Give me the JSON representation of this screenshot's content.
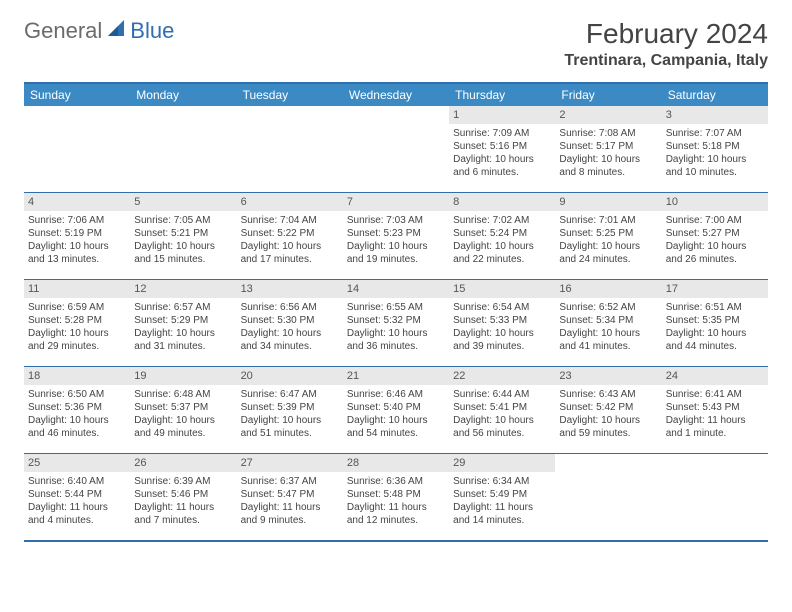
{
  "logo": {
    "general": "General",
    "blue": "Blue"
  },
  "header": {
    "month_title": "February 2024",
    "location": "Trentinara, Campania, Italy"
  },
  "colors": {
    "header_bg": "#3b8ac4",
    "border": "#2f6fb0",
    "daynum_bg": "#e8e8e8",
    "text": "#444444"
  },
  "day_names": [
    "Sunday",
    "Monday",
    "Tuesday",
    "Wednesday",
    "Thursday",
    "Friday",
    "Saturday"
  ],
  "weeks": [
    [
      null,
      null,
      null,
      null,
      {
        "n": "1",
        "sr": "Sunrise: 7:09 AM",
        "ss": "Sunset: 5:16 PM",
        "d1": "Daylight: 10 hours",
        "d2": "and 6 minutes."
      },
      {
        "n": "2",
        "sr": "Sunrise: 7:08 AM",
        "ss": "Sunset: 5:17 PM",
        "d1": "Daylight: 10 hours",
        "d2": "and 8 minutes."
      },
      {
        "n": "3",
        "sr": "Sunrise: 7:07 AM",
        "ss": "Sunset: 5:18 PM",
        "d1": "Daylight: 10 hours",
        "d2": "and 10 minutes."
      }
    ],
    [
      {
        "n": "4",
        "sr": "Sunrise: 7:06 AM",
        "ss": "Sunset: 5:19 PM",
        "d1": "Daylight: 10 hours",
        "d2": "and 13 minutes."
      },
      {
        "n": "5",
        "sr": "Sunrise: 7:05 AM",
        "ss": "Sunset: 5:21 PM",
        "d1": "Daylight: 10 hours",
        "d2": "and 15 minutes."
      },
      {
        "n": "6",
        "sr": "Sunrise: 7:04 AM",
        "ss": "Sunset: 5:22 PM",
        "d1": "Daylight: 10 hours",
        "d2": "and 17 minutes."
      },
      {
        "n": "7",
        "sr": "Sunrise: 7:03 AM",
        "ss": "Sunset: 5:23 PM",
        "d1": "Daylight: 10 hours",
        "d2": "and 19 minutes."
      },
      {
        "n": "8",
        "sr": "Sunrise: 7:02 AM",
        "ss": "Sunset: 5:24 PM",
        "d1": "Daylight: 10 hours",
        "d2": "and 22 minutes."
      },
      {
        "n": "9",
        "sr": "Sunrise: 7:01 AM",
        "ss": "Sunset: 5:25 PM",
        "d1": "Daylight: 10 hours",
        "d2": "and 24 minutes."
      },
      {
        "n": "10",
        "sr": "Sunrise: 7:00 AM",
        "ss": "Sunset: 5:27 PM",
        "d1": "Daylight: 10 hours",
        "d2": "and 26 minutes."
      }
    ],
    [
      {
        "n": "11",
        "sr": "Sunrise: 6:59 AM",
        "ss": "Sunset: 5:28 PM",
        "d1": "Daylight: 10 hours",
        "d2": "and 29 minutes."
      },
      {
        "n": "12",
        "sr": "Sunrise: 6:57 AM",
        "ss": "Sunset: 5:29 PM",
        "d1": "Daylight: 10 hours",
        "d2": "and 31 minutes."
      },
      {
        "n": "13",
        "sr": "Sunrise: 6:56 AM",
        "ss": "Sunset: 5:30 PM",
        "d1": "Daylight: 10 hours",
        "d2": "and 34 minutes."
      },
      {
        "n": "14",
        "sr": "Sunrise: 6:55 AM",
        "ss": "Sunset: 5:32 PM",
        "d1": "Daylight: 10 hours",
        "d2": "and 36 minutes."
      },
      {
        "n": "15",
        "sr": "Sunrise: 6:54 AM",
        "ss": "Sunset: 5:33 PM",
        "d1": "Daylight: 10 hours",
        "d2": "and 39 minutes."
      },
      {
        "n": "16",
        "sr": "Sunrise: 6:52 AM",
        "ss": "Sunset: 5:34 PM",
        "d1": "Daylight: 10 hours",
        "d2": "and 41 minutes."
      },
      {
        "n": "17",
        "sr": "Sunrise: 6:51 AM",
        "ss": "Sunset: 5:35 PM",
        "d1": "Daylight: 10 hours",
        "d2": "and 44 minutes."
      }
    ],
    [
      {
        "n": "18",
        "sr": "Sunrise: 6:50 AM",
        "ss": "Sunset: 5:36 PM",
        "d1": "Daylight: 10 hours",
        "d2": "and 46 minutes."
      },
      {
        "n": "19",
        "sr": "Sunrise: 6:48 AM",
        "ss": "Sunset: 5:37 PM",
        "d1": "Daylight: 10 hours",
        "d2": "and 49 minutes."
      },
      {
        "n": "20",
        "sr": "Sunrise: 6:47 AM",
        "ss": "Sunset: 5:39 PM",
        "d1": "Daylight: 10 hours",
        "d2": "and 51 minutes."
      },
      {
        "n": "21",
        "sr": "Sunrise: 6:46 AM",
        "ss": "Sunset: 5:40 PM",
        "d1": "Daylight: 10 hours",
        "d2": "and 54 minutes."
      },
      {
        "n": "22",
        "sr": "Sunrise: 6:44 AM",
        "ss": "Sunset: 5:41 PM",
        "d1": "Daylight: 10 hours",
        "d2": "and 56 minutes."
      },
      {
        "n": "23",
        "sr": "Sunrise: 6:43 AM",
        "ss": "Sunset: 5:42 PM",
        "d1": "Daylight: 10 hours",
        "d2": "and 59 minutes."
      },
      {
        "n": "24",
        "sr": "Sunrise: 6:41 AM",
        "ss": "Sunset: 5:43 PM",
        "d1": "Daylight: 11 hours",
        "d2": "and 1 minute."
      }
    ],
    [
      {
        "n": "25",
        "sr": "Sunrise: 6:40 AM",
        "ss": "Sunset: 5:44 PM",
        "d1": "Daylight: 11 hours",
        "d2": "and 4 minutes."
      },
      {
        "n": "26",
        "sr": "Sunrise: 6:39 AM",
        "ss": "Sunset: 5:46 PM",
        "d1": "Daylight: 11 hours",
        "d2": "and 7 minutes."
      },
      {
        "n": "27",
        "sr": "Sunrise: 6:37 AM",
        "ss": "Sunset: 5:47 PM",
        "d1": "Daylight: 11 hours",
        "d2": "and 9 minutes."
      },
      {
        "n": "28",
        "sr": "Sunrise: 6:36 AM",
        "ss": "Sunset: 5:48 PM",
        "d1": "Daylight: 11 hours",
        "d2": "and 12 minutes."
      },
      {
        "n": "29",
        "sr": "Sunrise: 6:34 AM",
        "ss": "Sunset: 5:49 PM",
        "d1": "Daylight: 11 hours",
        "d2": "and 14 minutes."
      },
      null,
      null
    ]
  ]
}
